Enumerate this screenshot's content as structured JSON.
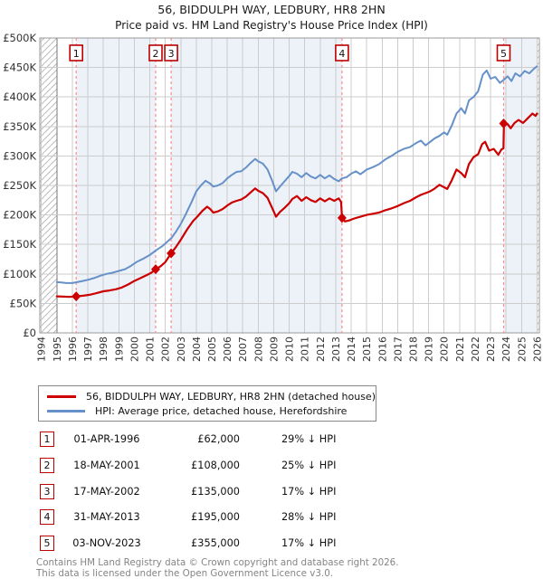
{
  "title": {
    "line1": "56, BIDDULPH WAY, LEDBURY, HR8 2HN",
    "line2": "Price paid vs. HM Land Registry's House Price Index (HPI)"
  },
  "colors": {
    "red": "#cc0000",
    "blue": "#6691c8",
    "band": "#edf2f9",
    "dash": "#ff8a8a",
    "event_box_border": "#bb0000",
    "grid": "#cccccc",
    "grid_dark": "#777777",
    "frame": "#999999",
    "hatch": "#bbbbbb",
    "tick_text": "#333333"
  },
  "chart_data": {
    "type": "line",
    "title": "Price paid vs. HM Land Registry's House Price Index (HPI)",
    "x_axis": {
      "min": 1993.9,
      "max": 2026.15,
      "tick_labels": [
        "1994",
        "1995",
        "1996",
        "1997",
        "1998",
        "1999",
        "2000",
        "2001",
        "2002",
        "2003",
        "2004",
        "2005",
        "2006",
        "2007",
        "2008",
        "2009",
        "2010",
        "2011",
        "2012",
        "2013",
        "2014",
        "2015",
        "2016",
        "2017",
        "2018",
        "2019",
        "2020",
        "2021",
        "2022",
        "2023",
        "2024",
        "2025",
        "2026"
      ],
      "tick_years": [
        1994,
        1995,
        1996,
        1997,
        1998,
        1999,
        2000,
        2001,
        2002,
        2003,
        2004,
        2005,
        2006,
        2007,
        2008,
        2009,
        2010,
        2011,
        2012,
        2013,
        2014,
        2015,
        2016,
        2017,
        2018,
        2019,
        2020,
        2021,
        2022,
        2023,
        2024,
        2025,
        2026
      ]
    },
    "y_axis": {
      "min": 0,
      "max": 500000,
      "tick_step": 50000,
      "tick_labels": [
        "£0",
        "£50K",
        "£100K",
        "£150K",
        "£200K",
        "£250K",
        "£300K",
        "£350K",
        "£400K",
        "£450K",
        "£500K"
      ]
    },
    "data_start_year": 1995.0,
    "data_end_year": 2026.0,
    "grid": true,
    "legend_position": "below",
    "series": [
      {
        "name": "HPI: Average price, detached house, Herefordshire",
        "color": "#6691c8",
        "width": 2,
        "points_unit": "GBP_thousands",
        "points": [
          [
            1995.0,
            86
          ],
          [
            1995.3,
            85.5
          ],
          [
            1995.6,
            84.5
          ],
          [
            1996.0,
            84.5
          ],
          [
            1996.3,
            86
          ],
          [
            1996.6,
            87.5
          ],
          [
            1997.0,
            90
          ],
          [
            1997.4,
            93
          ],
          [
            1997.8,
            97
          ],
          [
            1998.2,
            100
          ],
          [
            1998.6,
            102
          ],
          [
            1999.0,
            105
          ],
          [
            1999.4,
            108
          ],
          [
            1999.8,
            114
          ],
          [
            2000.2,
            121
          ],
          [
            2000.6,
            126
          ],
          [
            2001.0,
            132
          ],
          [
            2001.4,
            140
          ],
          [
            2001.8,
            147
          ],
          [
            2002.1,
            154
          ],
          [
            2002.4,
            161
          ],
          [
            2002.7,
            172
          ],
          [
            2003.0,
            185
          ],
          [
            2003.3,
            200
          ],
          [
            2003.7,
            222
          ],
          [
            2004.0,
            240
          ],
          [
            2004.3,
            250
          ],
          [
            2004.6,
            258
          ],
          [
            2004.9,
            253
          ],
          [
            2005.1,
            248
          ],
          [
            2005.4,
            250
          ],
          [
            2005.7,
            254
          ],
          [
            2006.0,
            262
          ],
          [
            2006.3,
            268
          ],
          [
            2006.6,
            273
          ],
          [
            2006.9,
            274
          ],
          [
            2007.2,
            280
          ],
          [
            2007.5,
            288
          ],
          [
            2007.8,
            295
          ],
          [
            2008.0,
            291
          ],
          [
            2008.3,
            287
          ],
          [
            2008.6,
            277
          ],
          [
            2008.9,
            258
          ],
          [
            2009.15,
            240
          ],
          [
            2009.4,
            248
          ],
          [
            2009.7,
            257
          ],
          [
            2010.0,
            266
          ],
          [
            2010.2,
            273
          ],
          [
            2010.5,
            270
          ],
          [
            2010.8,
            264
          ],
          [
            2011.1,
            271
          ],
          [
            2011.4,
            265
          ],
          [
            2011.7,
            262
          ],
          [
            2012.0,
            268
          ],
          [
            2012.3,
            262
          ],
          [
            2012.6,
            267
          ],
          [
            2012.9,
            261
          ],
          [
            2013.2,
            257
          ],
          [
            2013.4,
            262
          ],
          [
            2013.7,
            264
          ],
          [
            2014.0,
            270
          ],
          [
            2014.3,
            274
          ],
          [
            2014.6,
            269
          ],
          [
            2015.0,
            277
          ],
          [
            2015.4,
            281
          ],
          [
            2015.8,
            286
          ],
          [
            2016.2,
            294
          ],
          [
            2016.6,
            300
          ],
          [
            2017.0,
            307
          ],
          [
            2017.4,
            312
          ],
          [
            2017.8,
            315
          ],
          [
            2018.2,
            322
          ],
          [
            2018.5,
            326
          ],
          [
            2018.8,
            318
          ],
          [
            2019.1,
            324
          ],
          [
            2019.4,
            330
          ],
          [
            2019.7,
            334
          ],
          [
            2020.0,
            340
          ],
          [
            2020.2,
            336
          ],
          [
            2020.5,
            352
          ],
          [
            2020.8,
            372
          ],
          [
            2021.1,
            381
          ],
          [
            2021.35,
            372
          ],
          [
            2021.6,
            394
          ],
          [
            2021.9,
            400
          ],
          [
            2022.2,
            410
          ],
          [
            2022.5,
            438
          ],
          [
            2022.75,
            445
          ],
          [
            2023.0,
            431
          ],
          [
            2023.3,
            434
          ],
          [
            2023.6,
            424
          ],
          [
            2023.84,
            429
          ],
          [
            2024.1,
            435
          ],
          [
            2024.35,
            427
          ],
          [
            2024.6,
            440
          ],
          [
            2024.9,
            435
          ],
          [
            2025.2,
            444
          ],
          [
            2025.5,
            440
          ],
          [
            2025.8,
            448
          ],
          [
            2026.0,
            452
          ]
        ]
      },
      {
        "name": "56, BIDDULPH WAY, LEDBURY, HR8 2HN (detached house)",
        "color": "#cc0000",
        "width": 2.2,
        "points_unit": "GBP_thousands",
        "points": [
          [
            1995.0,
            62
          ],
          [
            1995.4,
            61.5
          ],
          [
            1995.8,
            61
          ],
          [
            1996.25,
            62
          ],
          [
            1996.7,
            63
          ],
          [
            1997.1,
            64.5
          ],
          [
            1997.5,
            67
          ],
          [
            1998.0,
            70.5
          ],
          [
            1998.4,
            72
          ],
          [
            1998.8,
            74
          ],
          [
            1999.2,
            77
          ],
          [
            1999.6,
            82
          ],
          [
            2000.0,
            88
          ],
          [
            2000.4,
            93
          ],
          [
            2000.8,
            98
          ],
          [
            2001.1,
            102
          ],
          [
            2001.38,
            108
          ],
          [
            2001.7,
            113
          ],
          [
            2002.0,
            120
          ],
          [
            2002.38,
            135
          ],
          [
            2002.7,
            146
          ],
          [
            2003.0,
            158
          ],
          [
            2003.4,
            175
          ],
          [
            2003.8,
            190
          ],
          [
            2004.1,
            198
          ],
          [
            2004.4,
            207
          ],
          [
            2004.7,
            214
          ],
          [
            2004.9,
            210
          ],
          [
            2005.1,
            204
          ],
          [
            2005.4,
            206
          ],
          [
            2005.7,
            210
          ],
          [
            2006.0,
            216
          ],
          [
            2006.3,
            221
          ],
          [
            2006.6,
            224
          ],
          [
            2006.9,
            226
          ],
          [
            2007.2,
            231
          ],
          [
            2007.5,
            238
          ],
          [
            2007.8,
            245
          ],
          [
            2008.0,
            241
          ],
          [
            2008.3,
            237
          ],
          [
            2008.6,
            229
          ],
          [
            2008.9,
            212
          ],
          [
            2009.15,
            197
          ],
          [
            2009.4,
            205
          ],
          [
            2009.7,
            212
          ],
          [
            2010.0,
            220
          ],
          [
            2010.2,
            227
          ],
          [
            2010.5,
            232
          ],
          [
            2010.8,
            224
          ],
          [
            2011.1,
            230
          ],
          [
            2011.4,
            225
          ],
          [
            2011.7,
            222
          ],
          [
            2012.0,
            228
          ],
          [
            2012.3,
            223
          ],
          [
            2012.6,
            228
          ],
          [
            2012.9,
            224
          ],
          [
            2013.2,
            228
          ],
          [
            2013.35,
            222
          ],
          [
            2013.41,
            196
          ],
          [
            2013.6,
            189
          ],
          [
            2013.9,
            191
          ],
          [
            2014.2,
            194
          ],
          [
            2014.6,
            197
          ],
          [
            2015.0,
            200
          ],
          [
            2015.4,
            202
          ],
          [
            2015.8,
            204
          ],
          [
            2016.2,
            208
          ],
          [
            2016.6,
            211
          ],
          [
            2017.0,
            215
          ],
          [
            2017.4,
            220
          ],
          [
            2017.8,
            224
          ],
          [
            2018.2,
            230
          ],
          [
            2018.5,
            234
          ],
          [
            2018.8,
            237
          ],
          [
            2019.1,
            240
          ],
          [
            2019.4,
            245
          ],
          [
            2019.7,
            251
          ],
          [
            2020.0,
            247
          ],
          [
            2020.2,
            244
          ],
          [
            2020.5,
            259
          ],
          [
            2020.8,
            277
          ],
          [
            2021.1,
            271
          ],
          [
            2021.35,
            264
          ],
          [
            2021.6,
            286
          ],
          [
            2021.9,
            298
          ],
          [
            2022.2,
            303
          ],
          [
            2022.45,
            320
          ],
          [
            2022.65,
            324
          ],
          [
            2022.9,
            309
          ],
          [
            2023.2,
            312
          ],
          [
            2023.5,
            302
          ],
          [
            2023.7,
            311
          ],
          [
            2023.83,
            313
          ],
          [
            2023.86,
            352
          ],
          [
            2024.1,
            354
          ],
          [
            2024.3,
            347
          ],
          [
            2024.55,
            356
          ],
          [
            2024.8,
            361
          ],
          [
            2025.1,
            356
          ],
          [
            2025.4,
            364
          ],
          [
            2025.7,
            372
          ],
          [
            2025.9,
            368
          ],
          [
            2026.0,
            372
          ]
        ]
      }
    ]
  },
  "legend": [
    {
      "label": "56, BIDDULPH WAY, LEDBURY, HR8 2HN (detached house)",
      "color": "#cc0000"
    },
    {
      "label": "HPI: Average price, detached house, Herefordshire",
      "color": "#6691c8"
    }
  ],
  "transactions": [
    {
      "num": "1",
      "date": "01-APR-1996",
      "price_label": "£62,000",
      "price": 62000,
      "hpi_diff": "29% ↓ HPI",
      "year": 1996.25
    },
    {
      "num": "2",
      "date": "18-MAY-2001",
      "price_label": "£108,000",
      "price": 108000,
      "hpi_diff": "25% ↓ HPI",
      "year": 2001.38
    },
    {
      "num": "3",
      "date": "17-MAY-2002",
      "price_label": "£135,000",
      "price": 135000,
      "hpi_diff": "17% ↓ HPI",
      "year": 2002.38
    },
    {
      "num": "4",
      "date": "31-MAY-2013",
      "price_label": "£195,000",
      "price": 195000,
      "hpi_diff": "28% ↓ HPI",
      "year": 2013.41
    },
    {
      "num": "5",
      "date": "03-NOV-2023",
      "price_label": "£355,000",
      "price": 355000,
      "hpi_diff": "17% ↓ HPI",
      "year": 2023.84
    }
  ],
  "footer": {
    "line1": "Contains HM Land Registry data © Crown copyright and database right 2026.",
    "line2": "This data is licensed under the Open Government Licence v3.0."
  }
}
